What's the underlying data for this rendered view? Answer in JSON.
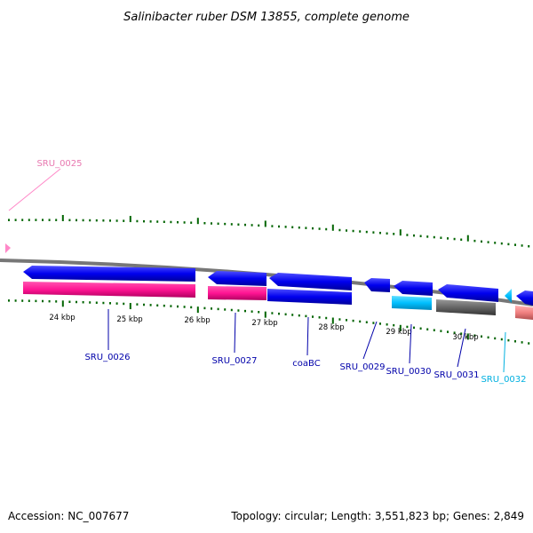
{
  "title": "Salinibacter ruber DSM 13855, complete genome",
  "footer": {
    "accession": "Accession: NC_007677",
    "summary": "Topology: circular; Length: 3,551,823 bp; Genes: 2,849"
  },
  "colors": {
    "forward_cds": "#0000ee",
    "forward_cds_alt": "#00bfff",
    "reverse_cds": "#ff1493",
    "reverse_cds_cyan": "#00bfff",
    "reverse_cds_gray": "#666666",
    "reverse_cds_salmon": "#f08080",
    "backbone": "#888888",
    "tick": "#006400",
    "label_blue": "#0000aa",
    "label_pink": "#e878b0",
    "label_cyan": "#00b0e0"
  },
  "scale_labels": [
    "24 kbp",
    "25 kbp",
    "26 kbp",
    "27 kbp",
    "28 kbp",
    "29 kbp",
    "30 kbp"
  ],
  "gene_labels": [
    {
      "text": "SRU_0025",
      "color": "pink"
    },
    {
      "text": "SRU_0026",
      "color": "blue"
    },
    {
      "text": "SRU_0027",
      "color": "blue"
    },
    {
      "text": "coaBC",
      "color": "blue"
    },
    {
      "text": "SRU_0029",
      "color": "blue"
    },
    {
      "text": "SRU_0030",
      "color": "blue"
    },
    {
      "text": "SRU_0031",
      "color": "blue"
    },
    {
      "text": "SRU_0032",
      "color": "cyan"
    }
  ]
}
